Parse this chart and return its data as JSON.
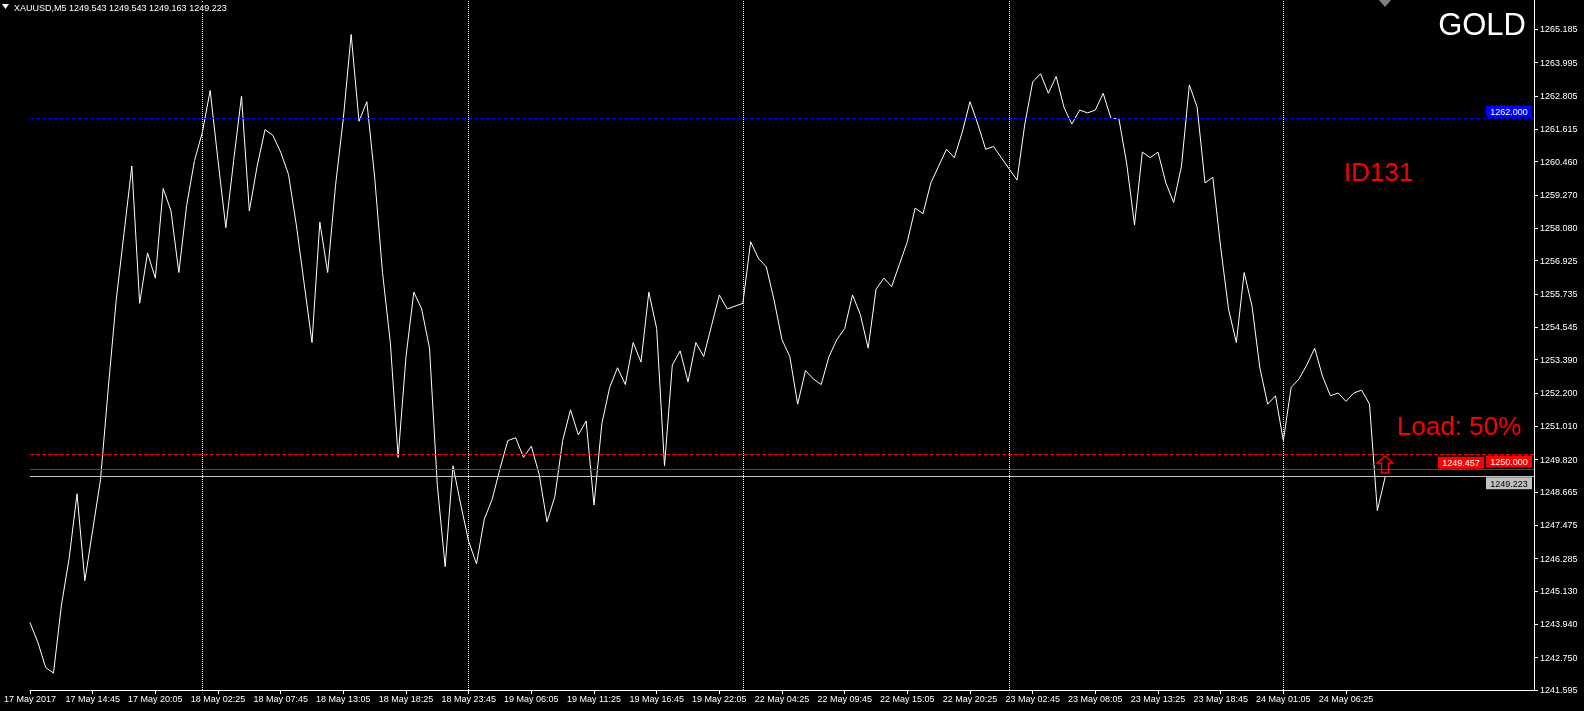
{
  "chart_data": {
    "type": "line",
    "title": "GOLD",
    "annotations": [
      "XAUUSD,M5 1249.543 1249.543 1249.163 1249.223",
      "ID131",
      "Load: 50%"
    ],
    "color": "#ffffff",
    "marker": "none",
    "categories": [
      "17 May 2017",
      null,
      null,
      null,
      null,
      null,
      null,
      null,
      "17 May 14:45",
      null,
      null,
      null,
      null,
      null,
      null,
      null,
      "17 May 20:05",
      null,
      null,
      null,
      null,
      null,
      null,
      null,
      "18 May 02:25",
      null,
      null,
      null,
      null,
      null,
      null,
      null,
      "18 May 07:45",
      null,
      null,
      null,
      null,
      null,
      null,
      null,
      "18 May 13:05",
      null,
      null,
      null,
      null,
      null,
      null,
      null,
      "18 May 18:25",
      null,
      null,
      null,
      null,
      null,
      null,
      null,
      "18 May 23:45",
      null,
      null,
      null,
      null,
      null,
      null,
      null,
      "19 May 06:05",
      null,
      null,
      null,
      null,
      null,
      null,
      null,
      "19 May 11:25",
      null,
      null,
      null,
      null,
      null,
      null,
      null,
      "19 May 16:45",
      null,
      null,
      null,
      null,
      null,
      null,
      null,
      "19 May 22:05",
      null,
      null,
      null,
      null,
      null,
      null,
      null,
      "22 May 04:25",
      null,
      null,
      null,
      null,
      null,
      null,
      null,
      "22 May 09:45",
      null,
      null,
      null,
      null,
      null,
      null,
      null,
      "22 May 15:05",
      null,
      null,
      null,
      null,
      null,
      null,
      null,
      "22 May 20:25",
      null,
      null,
      null,
      null,
      null,
      null,
      null,
      "23 May 02:45",
      null,
      null,
      null,
      null,
      null,
      null,
      null,
      "23 May 08:05",
      null,
      null,
      null,
      null,
      null,
      null,
      null,
      "23 May 13:25",
      null,
      null,
      null,
      null,
      null,
      null,
      null,
      "23 May 18:45",
      null,
      null,
      null,
      null,
      null,
      null,
      null,
      "24 May 01:05",
      null,
      null,
      null,
      null,
      null,
      null,
      null,
      "24 May 06:25",
      null,
      null,
      null,
      null,
      null,
      null,
      null,
      null,
      null,
      null,
      null,
      null,
      null,
      null,
      null,
      null,
      null,
      null,
      null,
      null,
      null,
      null,
      null,
      null
    ],
    "values": [
      1244.0,
      1243.3,
      1242.4,
      1242.2,
      1244.6,
      1246.3,
      1248.6,
      1245.5,
      1247.3,
      1249.1,
      1252.4,
      1255.5,
      1257.9,
      1260.3,
      1255.4,
      1257.2,
      1256.3,
      1259.5,
      1258.7,
      1256.5,
      1258.9,
      1260.5,
      1261.5,
      1263.0,
      1260.5,
      1258.1,
      1260.5,
      1262.8,
      1258.7,
      1260.3,
      1261.6,
      1261.4,
      1260.8,
      1260.0,
      1258.2,
      1256.1,
      1254.0,
      1258.3,
      1256.5,
      1259.6,
      1262.0,
      1265.0,
      1261.9,
      1262.6,
      1259.9,
      1256.5,
      1254.0,
      1249.9,
      1253.5,
      1255.8,
      1255.2,
      1253.8,
      1248.9,
      1246.0,
      1249.6,
      1248.2,
      1246.9,
      1246.1,
      1247.7,
      1248.4,
      1249.5,
      1250.5,
      1250.6,
      1249.9,
      1250.3,
      1249.3,
      1247.6,
      1248.5,
      1250.5,
      1251.6,
      1250.7,
      1251.2,
      1248.2,
      1251.1,
      1252.4,
      1253.1,
      1252.5,
      1254.0,
      1253.3,
      1255.8,
      1254.5,
      1249.6,
      1253.2,
      1253.7,
      1252.6,
      1254.0,
      1253.5,
      1254.6,
      1255.7,
      1255.2,
      1255.3,
      1255.4,
      1257.6,
      1257.0,
      1256.7,
      1255.5,
      1254.1,
      1253.5,
      1251.8,
      1253.0,
      1252.7,
      1252.5,
      1253.5,
      1254.1,
      1254.5,
      1255.7,
      1255.0,
      1253.8,
      1255.9,
      1256.3,
      1256.0,
      1256.8,
      1257.6,
      1258.8,
      1258.6,
      1259.7,
      1260.3,
      1260.9,
      1260.6,
      1261.5,
      1262.6,
      1261.8,
      1260.9,
      1261.0,
      1260.6,
      1260.2,
      1259.8,
      1261.8,
      1263.3,
      1263.6,
      1262.9,
      1263.5,
      1262.4,
      1261.8,
      1262.3,
      1262.2,
      1262.3,
      1262.9,
      1262.0,
      1262.0,
      1260.4,
      1258.2,
      1260.8,
      1260.6,
      1260.8,
      1259.7,
      1259.0,
      1260.3,
      1263.2,
      1262.4,
      1259.7,
      1259.9,
      1257.4,
      1255.2,
      1254.0,
      1256.5,
      1255.3,
      1253.1,
      1251.8,
      1252.1,
      1250.5,
      1252.4,
      1252.7,
      1253.2,
      1253.8,
      1252.8,
      1252.1,
      1252.2,
      1251.9,
      1252.2,
      1252.3,
      1251.8,
      1248.0,
      1249.2,
      null,
      null,
      null,
      null,
      null,
      null,
      null,
      null,
      null,
      null,
      null,
      null,
      null,
      null,
      null,
      null,
      null,
      null,
      null
    ],
    "ylim": [
      1241.595,
      1266.23
    ],
    "yticks": [
      1241.595,
      {
        "value": 1242.75,
        "label": "1242.750"
      },
      {
        "value": 1243.94,
        "label": "1243.940"
      },
      {
        "value": 1245.13,
        "label": "1245.130"
      },
      1246.285,
      1247.475,
      1248.665,
      {
        "value": 1249.82,
        "label": "1249.820"
      },
      {
        "value": 1251.01,
        "label": "1251.010"
      },
      {
        "value": 1252.2,
        "label": "1252.200"
      },
      {
        "value": 1253.39,
        "label": "1253.390"
      },
      1254.545,
      1255.735,
      1256.925,
      {
        "value": 1258.08,
        "label": "1258.080"
      },
      {
        "value": 1259.27,
        "label": "1259.270"
      },
      {
        "value": 1260.46,
        "label": "1260.460"
      },
      1261.615,
      1262.805,
      1263.995,
      1265.185
    ],
    "ref_lines": [
      {
        "axis": "y",
        "value": 1262,
        "label": "1262.000",
        "color": "#0000ff",
        "line_style": "dashed"
      },
      {
        "axis": "y",
        "value": 1250,
        "label": "1250.000",
        "color": "#ff0000",
        "line_style": "dashed"
      },
      {
        "axis": "y",
        "value": 1249.457,
        "label": "1249.457",
        "color": "#ff0000",
        "line_style": "solid"
      },
      {
        "axis": "y",
        "value": 1249.223,
        "label": "1249.223",
        "color": "#c0c0c0",
        "line_style": "solid"
      }
    ]
  }
}
